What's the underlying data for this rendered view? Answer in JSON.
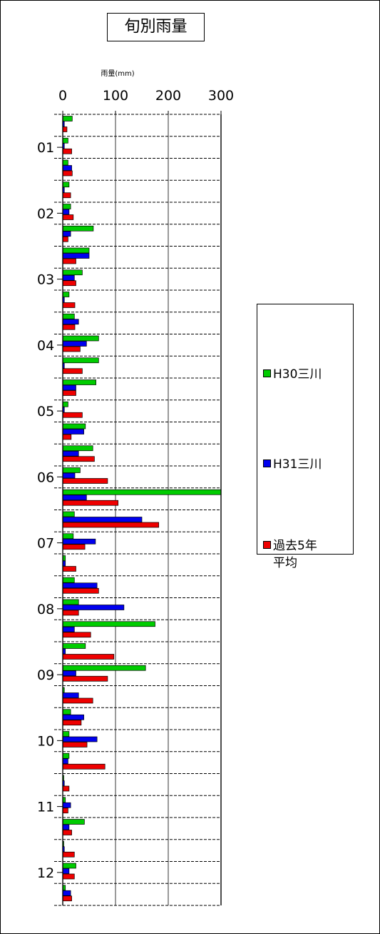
{
  "chart_data": {
    "type": "bar",
    "orientation": "horizontal",
    "title": "旬別雨量",
    "xlabel": "雨量(mm)",
    "xlim": [
      0,
      300
    ],
    "x_ticks": [
      "0",
      "100",
      "200",
      "300"
    ],
    "y_tick_labels": [
      "01",
      "02",
      "03",
      "04",
      "05",
      "06",
      "07",
      "08",
      "09",
      "10",
      "11",
      "12"
    ],
    "legend_position": "right",
    "grid": "dashed horizontal separators, vertical gridlines at 100 and 200",
    "series": [
      {
        "name": "H30三川",
        "color": "#00cc00",
        "values": [
          18,
          10,
          10,
          12,
          15,
          58,
          50,
          37,
          12,
          22,
          68,
          68,
          63,
          10,
          43,
          57,
          33,
          300,
          22,
          20,
          5,
          22,
          30,
          175,
          43,
          157,
          3,
          15,
          12,
          12,
          2,
          5,
          41,
          2,
          25,
          5
        ]
      },
      {
        "name": "H31三川",
        "color": "#0000ee",
        "values": [
          3,
          3,
          17,
          3,
          12,
          15,
          50,
          22,
          3,
          30,
          45,
          3,
          25,
          3,
          40,
          30,
          23,
          45,
          150,
          62,
          5,
          65,
          116,
          22,
          5,
          25,
          30,
          40,
          65,
          10,
          3,
          15,
          12,
          3,
          12,
          15
        ]
      },
      {
        "name": "過去5年平均",
        "color": "#ee0000",
        "values": [
          8,
          17,
          18,
          15,
          20,
          10,
          25,
          25,
          23,
          23,
          33,
          37,
          25,
          37,
          16,
          60,
          85,
          105,
          182,
          42,
          25,
          68,
          30,
          53,
          97,
          85,
          57,
          35,
          46,
          80,
          12,
          10,
          17,
          22,
          22,
          17
        ]
      }
    ]
  },
  "legend": {
    "items": [
      {
        "label": "H30三川",
        "color": "#00cc00"
      },
      {
        "label": "H31三川",
        "color": "#0000ee"
      },
      {
        "label": "過去5年\n平均",
        "color": "#ee0000"
      }
    ]
  }
}
